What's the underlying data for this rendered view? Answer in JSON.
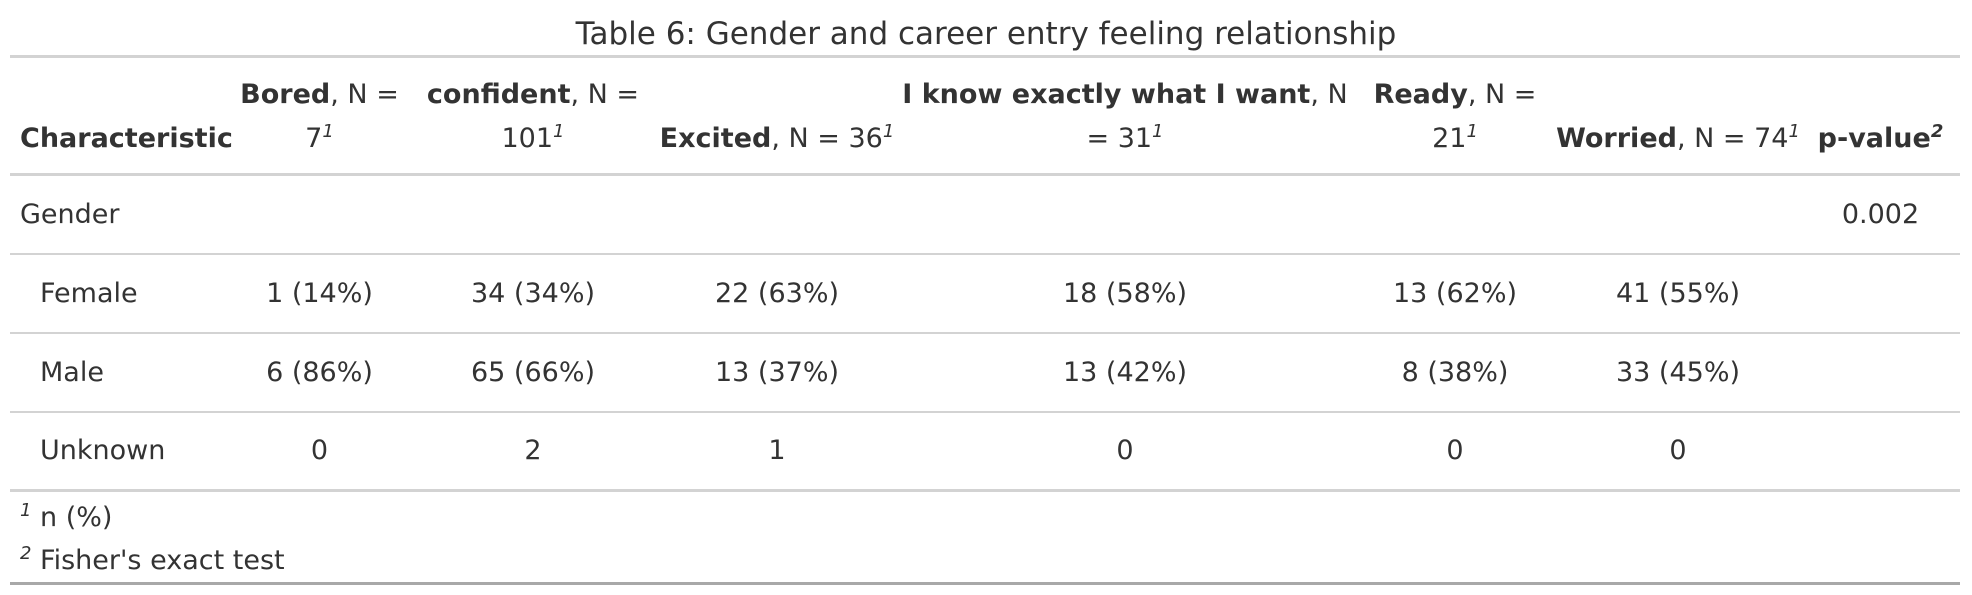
{
  "title": "Table 6: Gender and career entry feeling relationship",
  "header": {
    "characteristic": "Characteristic",
    "columns": [
      {
        "name": "Bored",
        "n_text": ", N = 7",
        "footnote": "1"
      },
      {
        "name": "confident",
        "n_text": ", N = 101",
        "footnote": "1"
      },
      {
        "name": "Excited",
        "n_text": ", N = 36",
        "footnote": "1"
      },
      {
        "name": "I know exactly what I want",
        "n_text": ", N = 31",
        "footnote": "1"
      },
      {
        "name": "Ready",
        "n_text": ", N = 21",
        "footnote": "1"
      },
      {
        "name": "Worried",
        "n_text": ", N = 74",
        "footnote": "1"
      }
    ],
    "pvalue": "p-value",
    "pvalue_footnote": "2"
  },
  "rows": [
    {
      "label": "Gender",
      "values": [
        "",
        "",
        "",
        "",
        "",
        ""
      ],
      "pvalue": "0.002"
    },
    {
      "label": "Female",
      "values": [
        "1 (14%)",
        "34 (34%)",
        "22 (63%)",
        "18 (58%)",
        "13 (62%)",
        "41 (55%)"
      ],
      "pvalue": ""
    },
    {
      "label": "Male",
      "values": [
        "6 (86%)",
        "65 (66%)",
        "13 (37%)",
        "13 (42%)",
        "8 (38%)",
        "33 (45%)"
      ],
      "pvalue": ""
    },
    {
      "label": "Unknown",
      "values": [
        "0",
        "2",
        "1",
        "0",
        "0",
        "0"
      ],
      "pvalue": ""
    }
  ],
  "footnotes": [
    {
      "mark": "1",
      "text": "n (%)"
    },
    {
      "mark": "2",
      "text": "Fisher's exact test"
    }
  ]
}
